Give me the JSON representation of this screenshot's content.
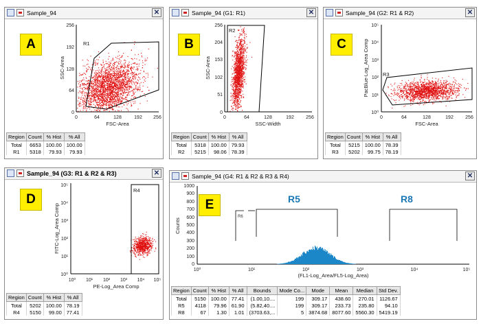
{
  "colors": {
    "dots": "#e01010",
    "histogram": "#1b86c8",
    "badge": "#ffee00",
    "region_label": "#1a78b4"
  },
  "icons": [
    "window-icon",
    "export-icon",
    "close-icon"
  ],
  "panels": {
    "A": {
      "badge": "A",
      "title": "Sample_94",
      "gate": "R1",
      "xlabel": "FSC-Area",
      "ylabel": "SSC-Area",
      "xticks": [
        "0",
        "64",
        "128",
        "192",
        "256"
      ],
      "yticks": [
        "0",
        "64",
        "128",
        "192",
        "256"
      ],
      "table": {
        "headers": [
          "Region",
          "Count",
          "% Hist",
          "% All"
        ],
        "rows": [
          [
            "Total",
            "6653",
            "100.00",
            "100.00"
          ],
          [
            "R1",
            "5318",
            "79.93",
            "79.93"
          ]
        ]
      }
    },
    "B": {
      "badge": "B",
      "title": "Sample_94",
      "subtitle": "(G1: R1)",
      "gate": "R2",
      "xlabel": "SSC-Width",
      "ylabel": "SSC-Area",
      "xticks": [
        "0",
        "64",
        "128",
        "192",
        "256"
      ],
      "yticks": [
        "0",
        "51",
        "102",
        "153",
        "204",
        "256"
      ],
      "table": {
        "headers": [
          "Region",
          "Count",
          "% Hist",
          "% All"
        ],
        "rows": [
          [
            "Total",
            "5318",
            "100.00",
            "79.93"
          ],
          [
            "R2",
            "5215",
            "98.06",
            "78.39"
          ]
        ]
      }
    },
    "C": {
      "badge": "C",
      "title": "Sample_94",
      "subtitle": "(G2: R1 & R2)",
      "gate": "R3",
      "xlabel": "FSC-Area",
      "ylabel": "PacBlue-Log_Area Comp",
      "xticks": [
        "0",
        "64",
        "128",
        "192",
        "256"
      ],
      "yticks": [
        "10⁰",
        "10¹",
        "10²",
        "10³",
        "10⁴",
        "10⁵"
      ],
      "table": {
        "headers": [
          "Region",
          "Count",
          "% Hist",
          "% All"
        ],
        "rows": [
          [
            "Total",
            "5215",
            "100.00",
            "78.39"
          ],
          [
            "R3",
            "5202",
            "99.75",
            "78.19"
          ]
        ]
      }
    },
    "D": {
      "badge": "D",
      "title": "Sample_94",
      "subtitle": "(G3: R1 & R2 & R3)",
      "gate": "R4",
      "xlabel": "PE-Log_Area Comp",
      "ylabel": "FITC-Log_Area Comp",
      "xticks": [
        "10⁰",
        "10¹",
        "10²",
        "10³",
        "10⁴",
        "10⁵"
      ],
      "yticks": [
        "10⁰",
        "10¹",
        "10²",
        "10³",
        "10⁴",
        "10⁵"
      ],
      "table": {
        "headers": [
          "Region",
          "Count",
          "% Hist",
          "% All"
        ],
        "rows": [
          [
            "Total",
            "5202",
            "100.00",
            "78.19"
          ],
          [
            "R4",
            "5150",
            "99.00",
            "77.41"
          ]
        ]
      }
    },
    "E": {
      "badge": "E",
      "title": "Sample_94",
      "subtitle": "(G4: R1 & R2 & R3 & R4)",
      "xlabel": "(FL1-Log_Area/FL5-Log_Area)",
      "ylabel": "Counts",
      "region_labels": [
        "R5",
        "R8"
      ],
      "small_gate_label": "R6",
      "xticks": [
        "10⁰",
        "10¹",
        "10²",
        "10³",
        "10⁴",
        "10⁵"
      ],
      "yticks": [
        "0",
        "100",
        "200",
        "300",
        "400",
        "500",
        "600",
        "700",
        "800",
        "900",
        "1000"
      ],
      "table": {
        "headers": [
          "Region",
          "Count",
          "% Hist",
          "% All",
          "Bounds",
          "Mode Co...",
          "Mode",
          "Mean",
          "Median",
          "Std Dev."
        ],
        "rows": [
          [
            "Total",
            "5150",
            "100.00",
            "77.41",
            "(1.00,10....",
            "199",
            "309.17",
            "438.60",
            "270.01",
            "1126.67"
          ],
          [
            "R5",
            "4118",
            "79.96",
            "61.90",
            "(5.82,40....",
            "199",
            "309.17",
            "233.73",
            "235.80",
            "94.10"
          ],
          [
            "R8",
            "67",
            "1.30",
            "1.01",
            "(3703.63,...",
            "5",
            "3874.68",
            "8077.60",
            "5560.30",
            "5419.19"
          ]
        ]
      }
    }
  }
}
